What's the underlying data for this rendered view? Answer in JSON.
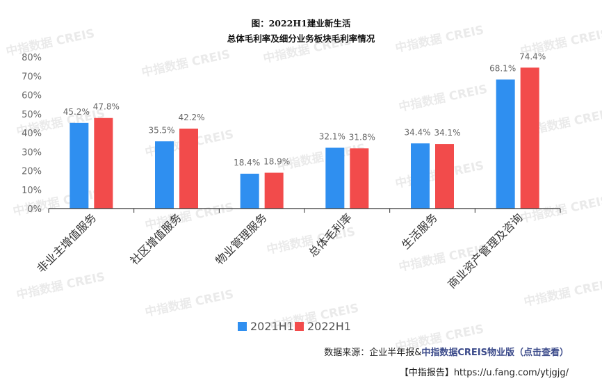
{
  "chart_data": {
    "type": "bar",
    "title_line1": "图：2022H1建业新生活",
    "title_line2": "总体毛利率及细分业务板块毛利率情况",
    "categories": [
      "非业主增值服务",
      "社区增值服务",
      "物业管理服务",
      "总体毛利率",
      "生活服务",
      "商业资产管理及咨询"
    ],
    "series": [
      {
        "name": "2021H1",
        "color": "#2f8ff0",
        "values": [
          45.2,
          35.5,
          18.4,
          32.1,
          34.4,
          68.1
        ],
        "labels": [
          "45.2%",
          "35.5%",
          "18.4%",
          "32.1%",
          "34.4%",
          "68.1%"
        ]
      },
      {
        "name": "2022H1",
        "color": "#f24b4b",
        "values": [
          47.8,
          42.2,
          18.9,
          31.8,
          34.1,
          74.4
        ],
        "labels": [
          "47.8%",
          "42.2%",
          "18.9%",
          "31.8%",
          "34.1%",
          "74.4%"
        ]
      }
    ],
    "y_ticks": [
      "0%",
      "10%",
      "20%",
      "30%",
      "40%",
      "50%",
      "60%",
      "70%",
      "80%"
    ],
    "ylim": [
      0,
      80
    ],
    "grid": false,
    "legend_position": "bottom"
  },
  "watermark": "中指数据 CREIS",
  "source": {
    "prefix": "数据来源：企业半年报&",
    "link": "中指数据CREIS物业版（点击查看）"
  },
  "report": "【中指报告】https://u.fang.com/ytjgjg/"
}
